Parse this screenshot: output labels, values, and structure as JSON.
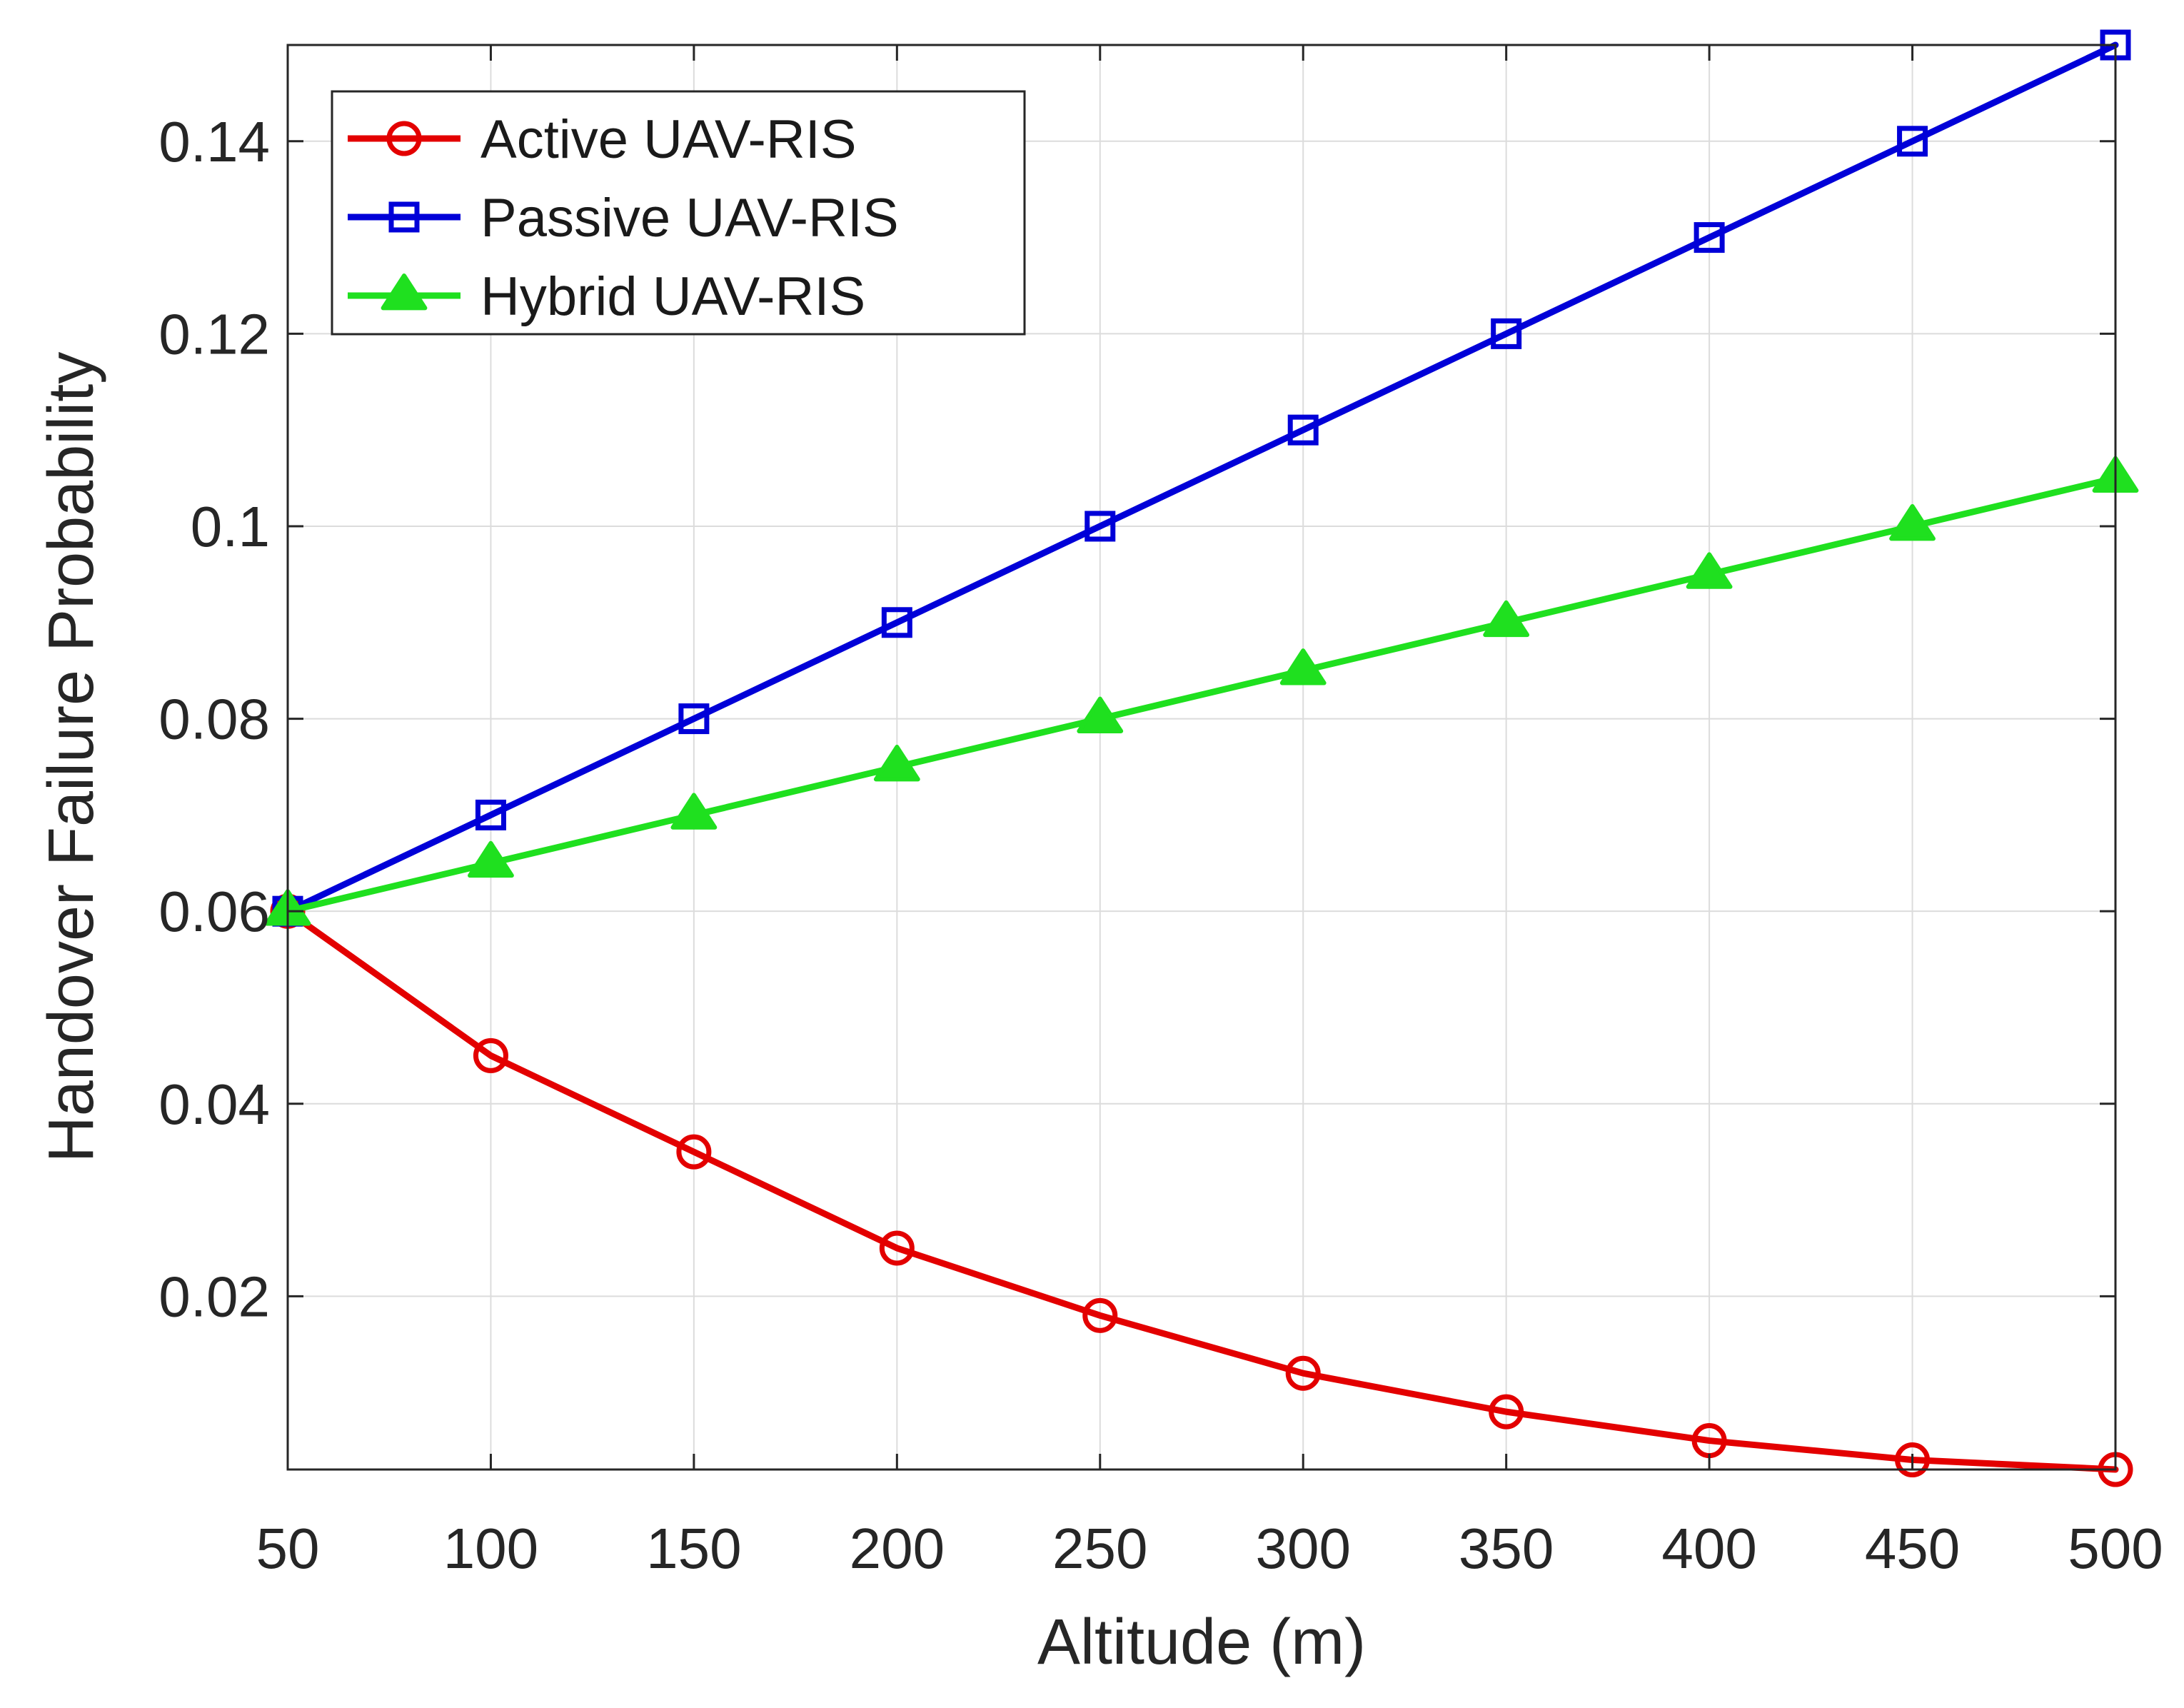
{
  "chart_data": {
    "type": "line",
    "title": "",
    "xlabel": "Altitude (m)",
    "ylabel": "Handover Failure Probability",
    "xlim": [
      50,
      500
    ],
    "ylim": [
      0.002,
      0.15
    ],
    "grid": true,
    "legend_position": "top-left",
    "x": [
      50,
      100,
      150,
      200,
      250,
      300,
      350,
      400,
      450,
      500
    ],
    "xticks": [
      "50",
      "100",
      "150",
      "200",
      "250",
      "300",
      "350",
      "400",
      "450",
      "500"
    ],
    "yticks": [
      {
        "value": 0.02,
        "label": "0.02"
      },
      {
        "value": 0.04,
        "label": "0.04"
      },
      {
        "value": 0.06,
        "label": "0.06"
      },
      {
        "value": 0.08,
        "label": "0.08"
      },
      {
        "value": 0.1,
        "label": "0.1"
      },
      {
        "value": 0.12,
        "label": "0.12"
      },
      {
        "value": 0.14,
        "label": "0.14"
      }
    ],
    "series": [
      {
        "name": "Active UAV-RIS",
        "color": "#e30000",
        "marker": "circle",
        "values": [
          0.06,
          0.045,
          0.035,
          0.025,
          0.018,
          0.012,
          0.008,
          0.005,
          0.003,
          0.002
        ]
      },
      {
        "name": "Passive UAV-RIS",
        "color": "#0000d8",
        "marker": "square",
        "values": [
          0.06,
          0.07,
          0.08,
          0.09,
          0.1,
          0.11,
          0.12,
          0.13,
          0.14,
          0.15
        ]
      },
      {
        "name": "Hybrid UAV-RIS",
        "color": "#1fe01f",
        "marker": "triangle",
        "values": [
          0.06,
          0.065,
          0.07,
          0.075,
          0.08,
          0.085,
          0.09,
          0.095,
          0.1,
          0.105
        ]
      }
    ]
  }
}
